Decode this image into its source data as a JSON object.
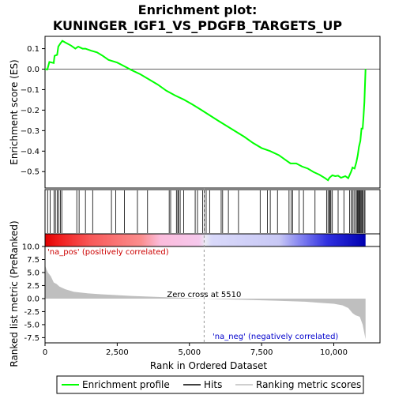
{
  "chart_data": {
    "type": "line",
    "title_line1": "Enrichment plot:",
    "title_line2": "KUNINGER_IGF1_VS_PDGFB_TARGETS_UP",
    "x_label": "Rank in Ordered Dataset",
    "top_y_label": "Enrichment score (ES)",
    "bottom_y_label": "Ranked list metric (PreRanked)",
    "x_range": [
      0,
      11600
    ],
    "x_ticks": [
      0,
      2500,
      5000,
      7500,
      10000
    ],
    "x_tick_labels": [
      "0",
      "2,500",
      "5,000",
      "7,500",
      "10,000"
    ],
    "es_range": [
      -0.58,
      0.16
    ],
    "es_ticks": [
      0.1,
      0.0,
      -0.1,
      -0.2,
      -0.3,
      -0.4,
      -0.5
    ],
    "es_tick_labels": [
      "0.1",
      "0.0",
      "−0.1",
      "−0.2",
      "−0.3",
      "−0.4",
      "−0.5"
    ],
    "metric_range": [
      -8.5,
      10.0
    ],
    "metric_ticks": [
      10.0,
      7.5,
      5.0,
      2.5,
      0.0,
      -2.5,
      -5.0,
      -7.5
    ],
    "metric_tick_labels": [
      "10.0",
      "7.5",
      "5.0",
      "2.5",
      "0.0",
      "-2.5",
      "-5.0",
      "-7.5"
    ],
    "es_curve": [
      [
        0,
        0.0
      ],
      [
        80,
        -0.002
      ],
      [
        150,
        0.035
      ],
      [
        300,
        0.03
      ],
      [
        330,
        0.065
      ],
      [
        420,
        0.07
      ],
      [
        460,
        0.11
      ],
      [
        530,
        0.125
      ],
      [
        600,
        0.138
      ],
      [
        700,
        0.13
      ],
      [
        900,
        0.115
      ],
      [
        1050,
        0.1
      ],
      [
        1150,
        0.11
      ],
      [
        1300,
        0.1
      ],
      [
        1400,
        0.1
      ],
      [
        1600,
        0.09
      ],
      [
        1800,
        0.082
      ],
      [
        2000,
        0.065
      ],
      [
        2200,
        0.045
      ],
      [
        2500,
        0.032
      ],
      [
        2800,
        0.01
      ],
      [
        3000,
        -0.005
      ],
      [
        3300,
        -0.025
      ],
      [
        3600,
        -0.05
      ],
      [
        3900,
        -0.075
      ],
      [
        4200,
        -0.105
      ],
      [
        4500,
        -0.128
      ],
      [
        4800,
        -0.148
      ],
      [
        5100,
        -0.172
      ],
      [
        5400,
        -0.198
      ],
      [
        5700,
        -0.225
      ],
      [
        6000,
        -0.252
      ],
      [
        6300,
        -0.278
      ],
      [
        6600,
        -0.304
      ],
      [
        6900,
        -0.33
      ],
      [
        7200,
        -0.36
      ],
      [
        7500,
        -0.385
      ],
      [
        7800,
        -0.4
      ],
      [
        8100,
        -0.42
      ],
      [
        8400,
        -0.45
      ],
      [
        8500,
        -0.46
      ],
      [
        8700,
        -0.46
      ],
      [
        8900,
        -0.475
      ],
      [
        9100,
        -0.485
      ],
      [
        9300,
        -0.502
      ],
      [
        9500,
        -0.515
      ],
      [
        9700,
        -0.532
      ],
      [
        9800,
        -0.542
      ],
      [
        9850,
        -0.53
      ],
      [
        9950,
        -0.518
      ],
      [
        10050,
        -0.522
      ],
      [
        10150,
        -0.52
      ],
      [
        10250,
        -0.53
      ],
      [
        10400,
        -0.522
      ],
      [
        10500,
        -0.532
      ],
      [
        10600,
        -0.5
      ],
      [
        10650,
        -0.48
      ],
      [
        10720,
        -0.485
      ],
      [
        10780,
        -0.455
      ],
      [
        10830,
        -0.42
      ],
      [
        10870,
        -0.38
      ],
      [
        10920,
        -0.35
      ],
      [
        10960,
        -0.29
      ],
      [
        11000,
        -0.29
      ],
      [
        11030,
        -0.23
      ],
      [
        11060,
        -0.16
      ],
      [
        11100,
        0.0
      ]
    ],
    "hit_ranks": [
      90,
      180,
      310,
      360,
      420,
      470,
      530,
      580,
      1100,
      1180,
      1400,
      1650,
      2300,
      2450,
      2750,
      3200,
      3550,
      4300,
      4350,
      4550,
      4600,
      4620,
      4680,
      4800,
      5200,
      5280,
      5460,
      5510,
      5580,
      5700,
      6100,
      6150,
      6350,
      6700,
      7450,
      7700,
      7800,
      8050,
      8450,
      8520,
      8580,
      8800,
      8950,
      9350,
      9750,
      9800,
      9850,
      9870,
      9900,
      9950,
      10150,
      10350,
      10550,
      10600,
      10650,
      10700,
      10750,
      10800,
      10820,
      10850,
      10870,
      10900,
      10920,
      10950,
      10980,
      11000,
      11050,
      11080
    ],
    "metric_curve": [
      [
        0,
        6.4
      ],
      [
        50,
        5.6
      ],
      [
        100,
        5.0
      ],
      [
        200,
        4.3
      ],
      [
        300,
        3.1
      ],
      [
        400,
        2.8
      ],
      [
        500,
        2.3
      ],
      [
        700,
        1.8
      ],
      [
        1000,
        1.3
      ],
      [
        1500,
        1.0
      ],
      [
        2000,
        0.8
      ],
      [
        3000,
        0.5
      ],
      [
        4000,
        0.3
      ],
      [
        5000,
        0.1
      ],
      [
        5510,
        0.0
      ],
      [
        6000,
        -0.1
      ],
      [
        7000,
        -0.25
      ],
      [
        8000,
        -0.4
      ],
      [
        9000,
        -0.6
      ],
      [
        9500,
        -0.8
      ],
      [
        10000,
        -1.0
      ],
      [
        10300,
        -1.3
      ],
      [
        10500,
        -1.8
      ],
      [
        10650,
        -2.8
      ],
      [
        10750,
        -3.2
      ],
      [
        10900,
        -3.5
      ],
      [
        11000,
        -5.0
      ],
      [
        11100,
        -7.8
      ]
    ],
    "zero_cross_label": "Zero cross at 5510",
    "zero_cross_rank": 5510,
    "pos_label": "'na_pos' (positively correlated)",
    "neg_label": "'na_neg' (negatively correlated)",
    "legend": [
      "Enrichment profile",
      "Hits",
      "Ranking metric scores"
    ],
    "colors": {
      "es_line": "#00ff00",
      "hit_line": "#000000",
      "metric_fill": "#bfbfbf",
      "pos_text": "#cc0000",
      "neg_text": "#0000cc"
    }
  }
}
